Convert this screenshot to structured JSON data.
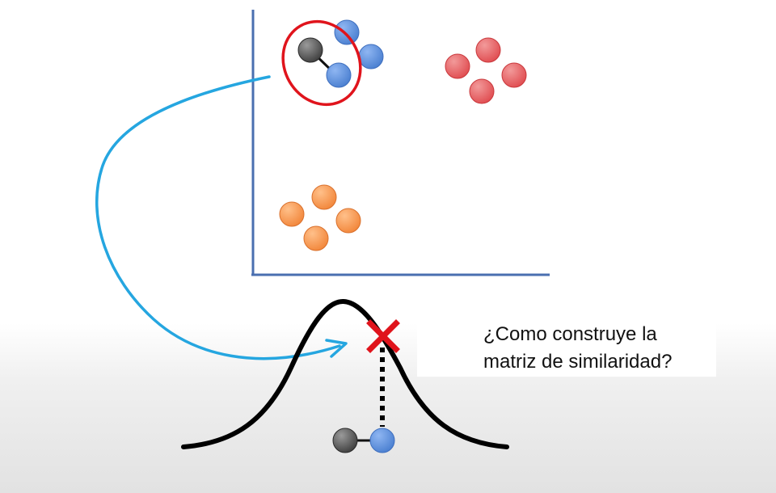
{
  "caption": {
    "line1": "¿Como construye la",
    "line2": "matriz de similaridad?"
  },
  "colors": {
    "axis": "#4a6fb0",
    "selection_ring": "#e0141c",
    "arrow": "#25a6e0",
    "gaussian_curve": "#000000",
    "cross_marker": "#e0141c",
    "point_black": "#555555",
    "point_blue": "#5b8fdc",
    "point_red": "#e8585a",
    "point_orange": "#f5944a"
  },
  "icons": {
    "marker": "x-cross-icon"
  }
}
